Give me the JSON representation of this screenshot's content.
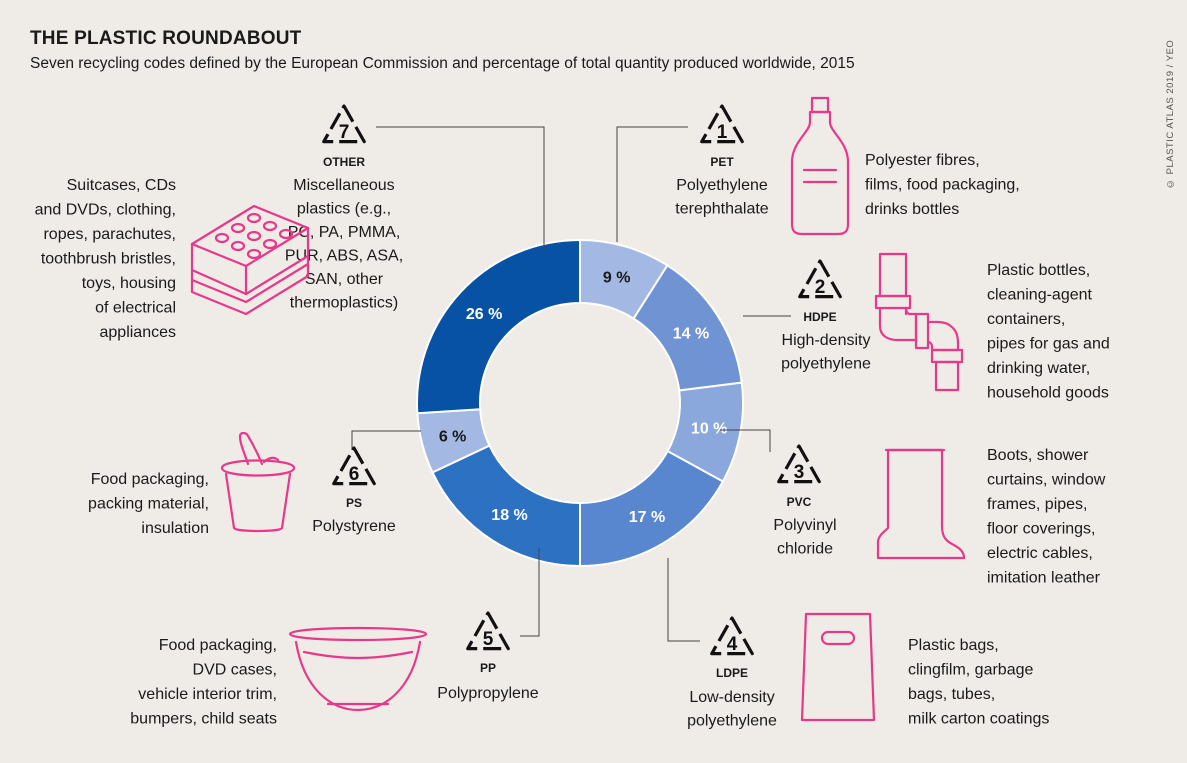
{
  "title": "THE PLASTIC ROUNDABOUT",
  "subtitle": "Seven recycling codes defined by the European Commission and percentage of total quantity produced worldwide, 2015",
  "credit": "© PLASTIC ATLAS 2019 / YEO",
  "colors": {
    "background": "#efebe7",
    "icon_stroke": "#e8388a",
    "slice_colors": [
      "#a3b8e2",
      "#7093d4",
      "#8aa8dc",
      "#5887d0",
      "#2d71c2",
      "#a3b8e2",
      "#0852a6"
    ]
  },
  "chart_data": {
    "type": "pie",
    "donut": true,
    "unit": "%",
    "slices": [
      {
        "code": "1",
        "abbr": "PET",
        "name": "Polyethylene terephthalate",
        "value": 9,
        "label": "9 %",
        "uses": "Polyester fibres, films, food packaging, drinks bottles",
        "icon": "bottle-icon"
      },
      {
        "code": "2",
        "abbr": "HDPE",
        "name": "High-density polyethylene",
        "value": 14,
        "label": "14 %",
        "uses": "Plastic bottles, cleaning-agent containers, pipes for gas and drinking water, household goods",
        "icon": "pipe-icon"
      },
      {
        "code": "3",
        "abbr": "PVC",
        "name": "Polyvinyl chloride",
        "value": 10,
        "label": "10 %",
        "uses": "Boots, shower curtains, window frames, pipes, floor coverings, electric cables, imitation leather",
        "icon": "boot-icon"
      },
      {
        "code": "4",
        "abbr": "LDPE",
        "name": "Low-density polyethylene",
        "value": 17,
        "label": "17 %",
        "uses": "Plastic bags, clingfilm, garbage bags, tubes, milk carton coatings",
        "icon": "bag-icon"
      },
      {
        "code": "5",
        "abbr": "PP",
        "name": "Polypropylene",
        "value": 18,
        "label": "18 %",
        "uses": "Food packaging, DVD cases, vehicle interior trim, bumpers, child seats",
        "icon": "bowl-icon"
      },
      {
        "code": "6",
        "abbr": "PS",
        "name": "Polystyrene",
        "value": 6,
        "label": "6 %",
        "uses": "Food packaging, packing material, insulation",
        "icon": "yogurt-cup-icon"
      },
      {
        "code": "7",
        "abbr": "OTHER",
        "name": "Miscellaneous plastics (e.g., PC, PA, PMMA, PUR, ABS, ASA, SAN, other thermoplastics)",
        "value": 26,
        "label": "26 %",
        "uses": "Suitcases, CDs and DVDs, clothing, ropes, parachutes, toothbrush bristles, toys, housing of electrical appliances",
        "icon": "toy-brick-icon"
      }
    ]
  }
}
